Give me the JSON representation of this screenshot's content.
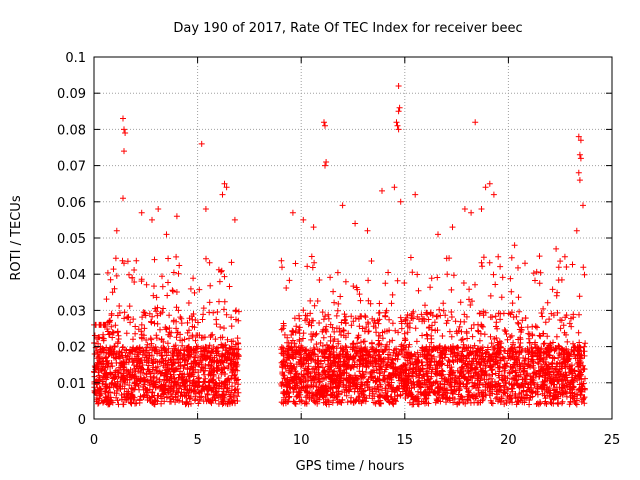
{
  "chart_data": {
    "type": "scatter",
    "title": "Day 190 of 2017, Rate Of TEC Index for receiver beec",
    "xlabel": "GPS time / hours",
    "ylabel": "ROTI / TECUs",
    "xlim": [
      0,
      25
    ],
    "ylim": [
      0,
      0.1
    ],
    "x_ticks": [
      0,
      5,
      10,
      15,
      20,
      25
    ],
    "y_ticks": [
      0,
      0.01,
      0.02,
      0.03,
      0.04,
      0.05,
      0.06,
      0.07,
      0.08,
      0.09,
      0.1
    ],
    "x_tick_labels": [
      "0",
      "5",
      "10",
      "15",
      "20",
      "25"
    ],
    "y_tick_labels": [
      "0",
      "0.01",
      "0.02",
      "0.03",
      "0.04",
      "0.05",
      "0.06",
      "0.07",
      "0.08",
      "0.09",
      "0.1"
    ],
    "grid": true,
    "marker": "+",
    "color": "#ff0000",
    "data_gap_hours": [
      7.0,
      9.0
    ],
    "series": [
      {
        "points": [
          [
            1.4,
            0.083
          ],
          [
            1.45,
            0.08
          ],
          [
            1.5,
            0.079
          ],
          [
            1.45,
            0.074
          ],
          [
            1.4,
            0.061
          ],
          [
            5.2,
            0.076
          ],
          [
            5.4,
            0.058
          ],
          [
            6.3,
            0.065
          ],
          [
            6.4,
            0.064
          ],
          [
            6.2,
            0.062
          ],
          [
            2.3,
            0.057
          ],
          [
            3.1,
            0.058
          ],
          [
            2.8,
            0.055
          ],
          [
            4.0,
            0.056
          ],
          [
            1.1,
            0.052
          ],
          [
            11.1,
            0.082
          ],
          [
            11.15,
            0.081
          ],
          [
            11.2,
            0.071
          ],
          [
            11.15,
            0.07
          ],
          [
            12.0,
            0.059
          ],
          [
            14.7,
            0.092
          ],
          [
            14.75,
            0.086
          ],
          [
            14.7,
            0.085
          ],
          [
            14.6,
            0.082
          ],
          [
            14.65,
            0.081
          ],
          [
            14.7,
            0.08
          ],
          [
            14.5,
            0.064
          ],
          [
            14.8,
            0.06
          ],
          [
            15.5,
            0.062
          ],
          [
            13.9,
            0.063
          ],
          [
            18.4,
            0.082
          ],
          [
            18.9,
            0.064
          ],
          [
            19.1,
            0.065
          ],
          [
            19.3,
            0.062
          ],
          [
            18.7,
            0.058
          ],
          [
            23.4,
            0.078
          ],
          [
            23.5,
            0.077
          ],
          [
            23.45,
            0.073
          ],
          [
            23.5,
            0.072
          ],
          [
            23.4,
            0.068
          ],
          [
            23.45,
            0.066
          ],
          [
            23.6,
            0.059
          ],
          [
            23.3,
            0.052
          ],
          [
            22.3,
            0.047
          ],
          [
            20.8,
            0.043
          ],
          [
            9.6,
            0.057
          ],
          [
            10.1,
            0.055
          ],
          [
            10.6,
            0.053
          ],
          [
            12.6,
            0.054
          ],
          [
            13.2,
            0.052
          ],
          [
            16.6,
            0.051
          ],
          [
            17.3,
            0.053
          ],
          [
            17.9,
            0.058
          ],
          [
            18.2,
            0.057
          ],
          [
            20.3,
            0.048
          ],
          [
            21.5,
            0.045
          ],
          [
            22.8,
            0.042
          ],
          [
            6.8,
            0.055
          ],
          [
            0.9,
            0.035
          ],
          [
            3.5,
            0.051
          ]
        ]
      }
    ]
  }
}
